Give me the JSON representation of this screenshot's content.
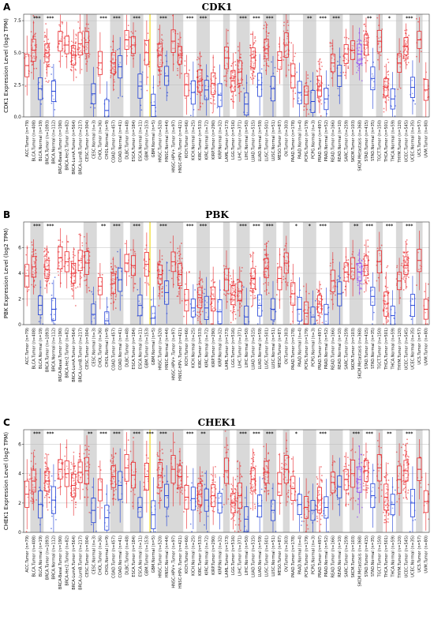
{
  "chart_data": [
    {
      "type": "box",
      "panel_letter": "A",
      "title": "CDK1",
      "ylabel": "CDK1 Expression Level (log2 TPM)",
      "ylim": [
        0,
        8
      ],
      "yticks": [
        "0.0",
        "2.5",
        "5.0",
        "7.5"
      ],
      "categories": [
        "ACC.Tumor (n=79)",
        "BLCA.Tumor (n=408)",
        "BLCA.Normal (n=19)",
        "BRCA.Tumor (n=1093)",
        "BRCA.Normal (n=112)",
        "BRCA-Basal.Tumor (n=190)",
        "BRCA-Her2.Tumor (n=82)",
        "BRCA-LumA.Tumor (n=564)",
        "BRCA-LumB.Tumor (n=217)",
        "CESC.Tumor (n=304)",
        "CESC.Normal (n=3)",
        "CHOL.Tumor (n=36)",
        "CHOL.Normal (n=9)",
        "COAD.Tumor (n=457)",
        "COAD.Normal (n=41)",
        "DLBC.Tumor (n=48)",
        "ESCA.Tumor (n=184)",
        "ESCA.Normal (n=11)",
        "GBM.Tumor (n=153)",
        "GBM.Normal (n=5)",
        "HNSC.Tumor (n=520)",
        "HNSC.Normal (n=44)",
        "HNSC-HPV+.Tumor (n=97)",
        "HNSC-HPV-.Tumor (n=421)",
        "KICH.Tumor (n=66)",
        "KICH.Normal (n=25)",
        "KIRC.Tumor (n=533)",
        "KIRC.Normal (n=72)",
        "KIRP.Tumor (n=290)",
        "KIRP.Normal (n=32)",
        "LAML.Tumor (n=173)",
        "LGG.Tumor (n=516)",
        "LIHC.Tumor (n=371)",
        "LIHC.Normal (n=50)",
        "LUAD.Tumor (n=515)",
        "LUAD.Normal (n=59)",
        "LUSC.Tumor (n=501)",
        "LUSC.Normal (n=51)",
        "MESO.Tumor (n=87)",
        "OV.Tumor (n=303)",
        "PAAD.Tumor (n=178)",
        "PAAD.Normal (n=4)",
        "PCPG.Tumor (n=179)",
        "PCPG.Normal (n=3)",
        "PRAD.Tumor (n=497)",
        "PRAD.Normal (n=52)",
        "READ.Tumor (n=166)",
        "READ.Normal (n=10)",
        "SARC.Tumor (n=259)",
        "SKCM.Tumor (n=103)",
        "SKCM.Metastasis (n=368)",
        "STAD.Tumor (n=415)",
        "STAD.Normal (n=35)",
        "TGCT.Tumor (n=150)",
        "THCA.Tumor (n=501)",
        "THCA.Normal (n=59)",
        "THYM.Tumor (n=120)",
        "UCEC.Tumor (n=545)",
        "UCEC.Normal (n=35)",
        "UCS.Tumor (n=57)",
        "UVM.Tumor (n=80)"
      ],
      "medians": [
        4.0,
        5.2,
        2.2,
        5.0,
        2.0,
        5.9,
        5.6,
        4.8,
        5.7,
        5.8,
        1.8,
        4.2,
        0.5,
        4.2,
        3.9,
        6.0,
        5.6,
        2.4,
        5.0,
        0.9,
        4.8,
        3.2,
        5.9,
        4.8,
        2.5,
        1.9,
        2.8,
        2.1,
        2.6,
        1.7,
        4.6,
        2.8,
        3.5,
        1.0,
        4.6,
        2.5,
        5.3,
        2.2,
        4.4,
        5.6,
        3.2,
        1.9,
        1.7,
        1.2,
        2.4,
        1.4,
        4.2,
        3.2,
        4.9,
        5.2,
        4.9,
        5.6,
        3.0,
        5.9,
        2.3,
        1.4,
        4.2,
        5.5,
        2.3,
        6.0,
        2.1
      ],
      "significance": [
        [
          "BLCA.Tumor (n=408)",
          "***"
        ],
        [
          "BRCA.Tumor (n=1093)",
          "***"
        ],
        [
          "CHOL.Tumor (n=36)",
          "***"
        ],
        [
          "COAD.Tumor (n=457)",
          "***"
        ],
        [
          "ESCA.Tumor (n=184)",
          "***"
        ],
        [
          "HNSC.Tumor (n=520)",
          "***"
        ],
        [
          "KICH.Tumor (n=66)",
          "***"
        ],
        [
          "KIRC.Tumor (n=533)",
          "***"
        ],
        [
          "LIHC.Tumor (n=371)",
          "***"
        ],
        [
          "LUAD.Tumor (n=515)",
          "***"
        ],
        [
          "LUSC.Tumor (n=501)",
          "***"
        ],
        [
          "PCPG.Tumor (n=179)",
          "**"
        ],
        [
          "PRAD.Tumor (n=497)",
          "***"
        ],
        [
          "READ.Tumor (n=166)",
          "***"
        ],
        [
          "STAD.Tumor (n=415)",
          "**"
        ],
        [
          "THCA.Tumor (n=501)",
          "*"
        ],
        [
          "UCEC.Tumor (n=545)",
          "***"
        ]
      ]
    },
    {
      "type": "box",
      "panel_letter": "B",
      "title": "PBK",
      "ylabel": "PBK Expression Level (log2 TPM)",
      "ylim": [
        0,
        8
      ],
      "yticks": [
        "0",
        "2",
        "4",
        "6"
      ],
      "categories": [
        "ACC.Tumor (n=79)",
        "BLCA.Tumor (n=408)",
        "BLCA.Normal (n=19)",
        "BRCA.Tumor (n=1093)",
        "BRCA.Normal (n=112)",
        "BRCA-Basal.Tumor (n=190)",
        "BRCA-Her2.Tumor (n=82)",
        "BRCA-LumA.Tumor (n=564)",
        "BRCA-LumB.Tumor (n=217)",
        "CESC.Tumor (n=304)",
        "CESC.Normal (n=3)",
        "CHOL.Tumor (n=36)",
        "CHOL.Normal (n=9)",
        "COAD.Tumor (n=457)",
        "COAD.Normal (n=41)",
        "DLBC.Tumor (n=48)",
        "ESCA.Tumor (n=184)",
        "ESCA.Normal (n=11)",
        "GBM.Tumor (n=153)",
        "GBM.Normal (n=5)",
        "HNSC.Tumor (n=520)",
        "HNSC.Normal (n=44)",
        "HNSC-HPV+.Tumor (n=97)",
        "HNSC-HPV-.Tumor (n=421)",
        "KICH.Tumor (n=66)",
        "KICH.Normal (n=25)",
        "KIRC.Tumor (n=533)",
        "KIRC.Normal (n=72)",
        "KIRP.Tumor (n=290)",
        "KIRP.Normal (n=32)",
        "LAML.Tumor (n=173)",
        "LGG.Tumor (n=516)",
        "LIHC.Tumor (n=371)",
        "LIHC.Normal (n=50)",
        "LUAD.Tumor (n=515)",
        "LUAD.Normal (n=59)",
        "LUSC.Tumor (n=501)",
        "LUSC.Normal (n=51)",
        "MESO.Tumor (n=87)",
        "OV.Tumor (n=303)",
        "PAAD.Tumor (n=178)",
        "PAAD.Normal (n=4)",
        "PCPG.Tumor (n=179)",
        "PCPG.Normal (n=3)",
        "PRAD.Tumor (n=497)",
        "PRAD.Normal (n=52)",
        "READ.Tumor (n=166)",
        "READ.Normal (n=10)",
        "SARC.Tumor (n=259)",
        "SKCM.Tumor (n=103)",
        "SKCM.Metastasis (n=368)",
        "STAD.Tumor (n=415)",
        "STAD.Normal (n=35)",
        "TGCT.Tumor (n=150)",
        "THCA.Tumor (n=501)",
        "THCA.Normal (n=59)",
        "THYM.Tumor (n=120)",
        "UCEC.Tumor (n=545)",
        "UCEC.Normal (n=35)",
        "UCS.Tumor (n=57)",
        "UVM.Tumor (n=80)"
      ],
      "medians": [
        3.8,
        4.5,
        1.5,
        4.3,
        1.2,
        5.2,
        4.9,
        4.0,
        5.0,
        4.8,
        0.8,
        3.0,
        0.3,
        3.2,
        3.5,
        4.8,
        4.6,
        1.5,
        4.7,
        0.5,
        3.9,
        2.5,
        4.9,
        3.9,
        1.9,
        1.3,
        2.1,
        1.3,
        2.0,
        1.0,
        3.5,
        2.3,
        2.6,
        0.6,
        3.6,
        1.5,
        4.4,
        1.2,
        3.6,
        4.8,
        2.4,
        1.2,
        0.9,
        0.6,
        1.6,
        0.8,
        3.4,
        2.4,
        4.1,
        4.4,
        4.1,
        4.6,
        2.2,
        4.9,
        1.6,
        0.7,
        3.4,
        4.6,
        1.5,
        5.0,
        1.2
      ],
      "significance": [
        [
          "BLCA.Tumor (n=408)",
          "***"
        ],
        [
          "BRCA.Tumor (n=1093)",
          "***"
        ],
        [
          "CHOL.Tumor (n=36)",
          "**"
        ],
        [
          "COAD.Tumor (n=457)",
          "***"
        ],
        [
          "ESCA.Tumor (n=184)",
          "***"
        ],
        [
          "HNSC.Tumor (n=520)",
          "***"
        ],
        [
          "KICH.Tumor (n=66)",
          "***"
        ],
        [
          "KIRC.Tumor (n=533)",
          "***"
        ],
        [
          "LIHC.Tumor (n=371)",
          "***"
        ],
        [
          "LUAD.Tumor (n=515)",
          "***"
        ],
        [
          "LUSC.Tumor (n=501)",
          "***"
        ],
        [
          "PAAD.Tumor (n=178)",
          "*"
        ],
        [
          "PCPG.Tumor (n=179)",
          "*"
        ],
        [
          "PRAD.Tumor (n=497)",
          "***"
        ],
        [
          "SKCM.Tumor (n=103)",
          "**"
        ],
        [
          "STAD.Tumor (n=415)",
          "***"
        ],
        [
          "THCA.Tumor (n=501)",
          "***"
        ],
        [
          "UCEC.Tumor (n=545)",
          "***"
        ]
      ]
    },
    {
      "type": "box",
      "panel_letter": "C",
      "title": "CHEK1",
      "ylabel": "CHEK1 Expression Level (log2 TPM)",
      "ylim": [
        0,
        7
      ],
      "yticks": [
        "0",
        "2",
        "4",
        "6"
      ],
      "categories": [
        "ACC.Tumor (n=79)",
        "BLCA.Tumor (n=408)",
        "BLCA.Normal (n=19)",
        "BRCA.Tumor (n=1093)",
        "BRCA.Normal (n=112)",
        "BRCA-Basal.Tumor (n=190)",
        "BRCA-Her2.Tumor (n=82)",
        "BRCA-LumA.Tumor (n=564)",
        "BRCA-LumB.Tumor (n=217)",
        "CESC.Tumor (n=304)",
        "CESC.Normal (n=3)",
        "CHOL.Tumor (n=36)",
        "CHOL.Normal (n=9)",
        "COAD.Tumor (n=457)",
        "COAD.Normal (n=41)",
        "DLBC.Tumor (n=48)",
        "ESCA.Tumor (n=184)",
        "ESCA.Normal (n=11)",
        "GBM.Tumor (n=153)",
        "GBM.Normal (n=5)",
        "HNSC.Tumor (n=520)",
        "HNSC.Normal (n=44)",
        "HNSC-HPV+.Tumor (n=97)",
        "HNSC-HPV-.Tumor (n=421)",
        "KICH.Tumor (n=66)",
        "KICH.Normal (n=25)",
        "KIRC.Tumor (n=533)",
        "KIRC.Normal (n=72)",
        "KIRP.Tumor (n=290)",
        "KIRP.Normal (n=32)",
        "LAML.Tumor (n=173)",
        "LGG.Tumor (n=516)",
        "LIHC.Tumor (n=371)",
        "LIHC.Normal (n=50)",
        "LUAD.Tumor (n=515)",
        "LUAD.Normal (n=59)",
        "LUSC.Tumor (n=501)",
        "LUSC.Normal (n=51)",
        "MESO.Tumor (n=87)",
        "OV.Tumor (n=303)",
        "PAAD.Tumor (n=178)",
        "PAAD.Normal (n=4)",
        "PCPG.Tumor (n=179)",
        "PCPG.Normal (n=3)",
        "PRAD.Tumor (n=497)",
        "PRAD.Normal (n=52)",
        "READ.Tumor (n=166)",
        "READ.Normal (n=10)",
        "SARC.Tumor (n=259)",
        "SKCM.Tumor (n=103)",
        "SKCM.Metastasis (n=368)",
        "STAD.Tumor (n=415)",
        "STAD.Normal (n=35)",
        "TGCT.Tumor (n=150)",
        "THCA.Tumor (n=501)",
        "THCA.Normal (n=59)",
        "THYM.Tumor (n=120)",
        "UCEC.Tumor (n=545)",
        "UCEC.Normal (n=35)",
        "UCS.Tumor (n=57)",
        "UVM.Tumor (n=80)"
      ],
      "medians": [
        2.6,
        3.5,
        1.9,
        3.5,
        2.2,
        4.3,
        4.0,
        3.2,
        4.1,
        4.2,
        1.5,
        2.9,
        1.0,
        3.8,
        3.2,
        4.4,
        3.9,
        1.7,
        3.8,
        1.2,
        3.9,
        2.5,
        4.3,
        3.8,
        2.4,
        2.3,
        2.6,
        2.2,
        2.5,
        2.0,
        4.2,
        2.0,
        2.5,
        0.9,
        3.6,
        1.8,
        4.1,
        1.5,
        3.3,
        4.3,
        3.0,
        1.9,
        1.7,
        1.5,
        2.2,
        1.7,
        3.4,
        3.1,
        3.6,
        4.0,
        3.6,
        4.2,
        2.5,
        4.4,
        2.4,
        1.9,
        3.6,
        4.2,
        2.0,
        4.3,
        2.1
      ],
      "significance": [
        [
          "BLCA.Tumor (n=408)",
          "***"
        ],
        [
          "BRCA.Tumor (n=1093)",
          "***"
        ],
        [
          "CESC.Tumor (n=304)",
          "**"
        ],
        [
          "CHOL.Tumor (n=36)",
          "***"
        ],
        [
          "COAD.Tumor (n=457)",
          "***"
        ],
        [
          "ESCA.Tumor (n=184)",
          "***"
        ],
        [
          "GBM.Tumor (n=153)",
          "***"
        ],
        [
          "HNSC.Tumor (n=520)",
          "***"
        ],
        [
          "KICH.Tumor (n=66)",
          "***"
        ],
        [
          "KIRC.Tumor (n=533)",
          "**"
        ],
        [
          "LIHC.Tumor (n=371)",
          "***"
        ],
        [
          "LUAD.Tumor (n=515)",
          "***"
        ],
        [
          "LUSC.Tumor (n=501)",
          "***"
        ],
        [
          "PAAD.Tumor (n=178)",
          "*"
        ],
        [
          "PRAD.Tumor (n=497)",
          "***"
        ],
        [
          "SKCM.Tumor (n=103)",
          "***"
        ],
        [
          "STAD.Tumor (n=415)",
          "***"
        ],
        [
          "THCA.Tumor (n=501)",
          "**"
        ],
        [
          "UCEC.Tumor (n=545)",
          "***"
        ]
      ]
    }
  ],
  "colors": {
    "tumor": "#e8262a",
    "normal": "#1f3fd6",
    "metastasis": "#8a3ff0",
    "shade": "#d9d9d9",
    "highlight": "#f2e24a"
  }
}
